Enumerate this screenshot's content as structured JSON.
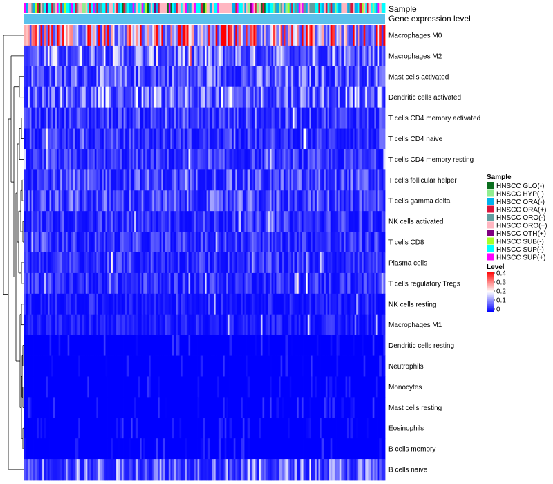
{
  "chart_data": {
    "type": "heatmap",
    "title": "",
    "annotation_tracks": [
      "Sample",
      "Gene expression level"
    ],
    "rows": [
      {
        "label": "Macrophages M0",
        "mean": 0.3
      },
      {
        "label": "Macrophages M2",
        "mean": 0.12
      },
      {
        "label": "Mast cells activated",
        "mean": 0.09
      },
      {
        "label": "Dendritic cells activated",
        "mean": 0.11
      },
      {
        "label": "T cells CD4 memory activated",
        "mean": 0.06
      },
      {
        "label": "T cells CD4 naive",
        "mean": 0.05
      },
      {
        "label": "T cells CD4 memory resting",
        "mean": 0.05
      },
      {
        "label": "T cells follicular helper",
        "mean": 0.07
      },
      {
        "label": "T cells gamma delta",
        "mean": 0.07
      },
      {
        "label": "NK cells activated",
        "mean": 0.05
      },
      {
        "label": "T cells CD8",
        "mean": 0.05
      },
      {
        "label": "Plasma cells",
        "mean": 0.05
      },
      {
        "label": "T cells regulatory  Tregs",
        "mean": 0.05
      },
      {
        "label": "NK cells resting",
        "mean": 0.03
      },
      {
        "label": "Macrophages M1",
        "mean": 0.03
      },
      {
        "label": "Dendritic cells resting",
        "mean": 0.01
      },
      {
        "label": "Neutrophils",
        "mean": 0.01
      },
      {
        "label": "Monocytes",
        "mean": 0.01
      },
      {
        "label": "Mast cells resting",
        "mean": 0.01
      },
      {
        "label": "Eosinophils",
        "mean": 0.005
      },
      {
        "label": "B cells memory",
        "mean": 0.005
      },
      {
        "label": "B cells naive",
        "mean": 0.1
      }
    ],
    "n_columns": 200,
    "value_range": [
      0,
      0.4
    ],
    "legend": {
      "sample_title": "Sample",
      "samples": [
        {
          "label": "HNSCC GLO(-)",
          "color": "#0a6e1e"
        },
        {
          "label": "HNSCC HYP(-)",
          "color": "#90ee90"
        },
        {
          "label": "HNSCC ORA(-)",
          "color": "#00b2ee"
        },
        {
          "label": "HNSCC ORA(+)",
          "color": "#dc143c"
        },
        {
          "label": "HNSCC ORO(-)",
          "color": "#5f9ea0"
        },
        {
          "label": "HNSCC ORO(+)",
          "color": "#ffb6c1"
        },
        {
          "label": "HNSCC OTH(+)",
          "color": "#800080"
        },
        {
          "label": "HNSCC SUB(-)",
          "color": "#a6ff2b"
        },
        {
          "label": "HNSCC SUP(-)",
          "color": "#00ffff"
        },
        {
          "label": "HNSCC SUP(+)",
          "color": "#ff00ff"
        }
      ],
      "level_title": "Level",
      "level_ticks": [
        "0.4",
        "0.3",
        "0.2",
        "0.1",
        "0"
      ],
      "level_colors": [
        "#0000ff",
        "#ffffff",
        "#ff0000"
      ]
    },
    "expression_bar_color": "#5bc0eb"
  }
}
